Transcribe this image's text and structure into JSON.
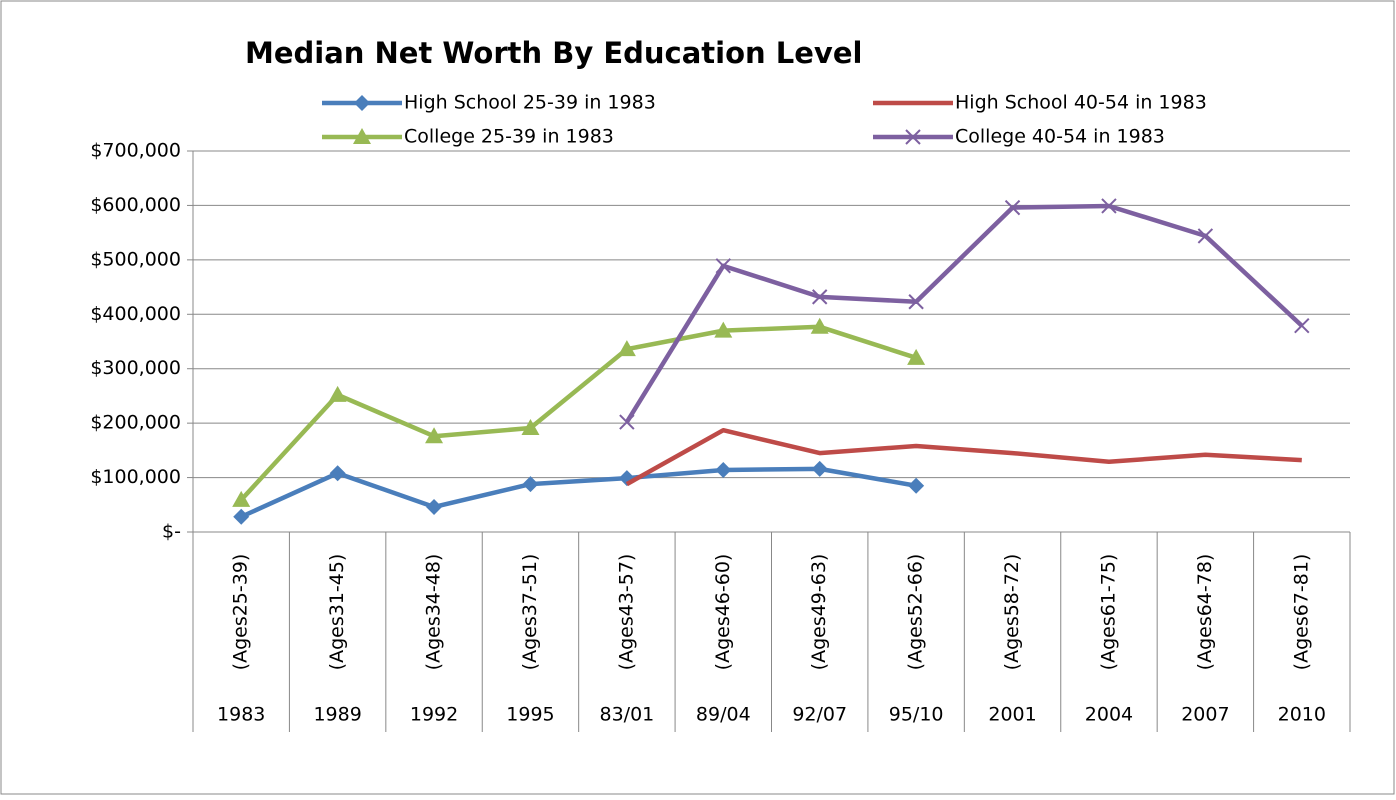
{
  "chart_data": {
    "type": "line",
    "title": "Median Net Worth By Education Level",
    "categories": [
      "1983",
      "1989",
      "1992",
      "1995",
      "83/01",
      "89/04",
      "92/07",
      "95/10",
      "2001",
      "2004",
      "2007",
      "2010"
    ],
    "subcategories": [
      "(Ages25-39)",
      "(Ages31-45)",
      "(Ages34-48)",
      "(Ages37-51)",
      "(Ages43-57)",
      "(Ages46-60)",
      "(Ages49-63)",
      "(Ages52-66)",
      "(Ages58-72)",
      "(Ages61-75)",
      "(Ages64-78)",
      "(Ages67-81)"
    ],
    "series": [
      {
        "name": "High School 25-39 in 1983",
        "color": "#4a7ebb",
        "marker": "diamond",
        "values": [
          28000,
          108000,
          46000,
          88000,
          99000,
          114000,
          116000,
          85000,
          null,
          null,
          null,
          null
        ]
      },
      {
        "name": "High School 40-54 in 1983",
        "color": "#be4b48",
        "marker": "none",
        "values": [
          null,
          null,
          null,
          null,
          88000,
          187000,
          145000,
          158000,
          145000,
          129000,
          142000,
          132000
        ]
      },
      {
        "name": "College 25-39 in 1983",
        "color": "#98b954",
        "marker": "triangle",
        "values": [
          59000,
          252000,
          176000,
          191000,
          336000,
          370000,
          377000,
          320000,
          null,
          null,
          null,
          null
        ]
      },
      {
        "name": "College 40-54 in 1983",
        "color": "#7d60a0",
        "marker": "x",
        "values": [
          null,
          null,
          null,
          null,
          202000,
          489000,
          432000,
          423000,
          596000,
          599000,
          544000,
          379000
        ]
      }
    ],
    "ylim": [
      0,
      700000
    ],
    "yticks": [
      {
        "value": 0,
        "label": "$-"
      },
      {
        "value": 100000,
        "label": "$100,000"
      },
      {
        "value": 200000,
        "label": "$200,000"
      },
      {
        "value": 300000,
        "label": "$300,000"
      },
      {
        "value": 400000,
        "label": "$400,000"
      },
      {
        "value": 500000,
        "label": "$500,000"
      },
      {
        "value": 600000,
        "label": "$600,000"
      },
      {
        "value": 700000,
        "label": "$700,000"
      }
    ],
    "grid": true
  }
}
